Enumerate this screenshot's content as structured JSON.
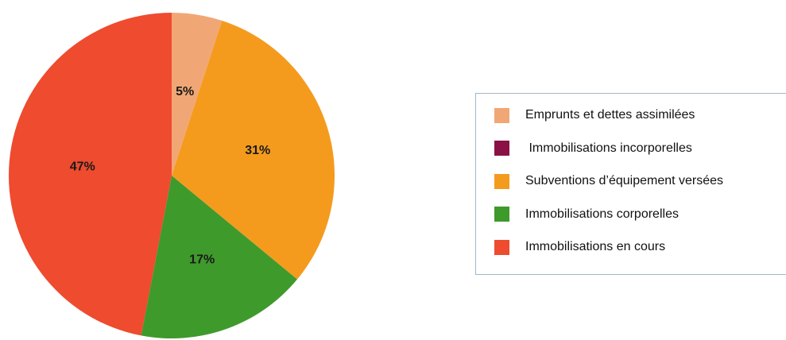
{
  "chart_data": {
    "type": "pie",
    "title": "",
    "start_angle_deg": 0,
    "direction": "clockwise",
    "slices": [
      {
        "name": "Emprunts et dettes assimilées",
        "value": 5,
        "label": "5%",
        "color": "#f1a775"
      },
      {
        "name": " Immobilisations incorporelles",
        "value": 0,
        "label": "",
        "color": "#8b1046"
      },
      {
        "name": "Subventions d’équipement versées",
        "value": 31,
        "label": "31%",
        "color": "#f49b1e"
      },
      {
        "name": "Immobilisations corporelles",
        "value": 17,
        "label": "17%",
        "color": "#3f9a2c"
      },
      {
        "name": "Immobilisations en cours",
        "value": 47,
        "label": "47%",
        "color": "#ee4b2f"
      }
    ],
    "legend_position": "right"
  },
  "legend": {
    "items": [
      {
        "label": "Emprunts et dettes assimilées",
        "color": "#f1a775"
      },
      {
        "label": " Immobilisations incorporelles",
        "color": "#8b1046"
      },
      {
        "label": "Subventions d’équipement versées",
        "color": "#f49b1e"
      },
      {
        "label": "Immobilisations corporelles",
        "color": "#3f9a2c"
      },
      {
        "label": "Immobilisations en cours",
        "color": "#ee4b2f"
      }
    ]
  }
}
